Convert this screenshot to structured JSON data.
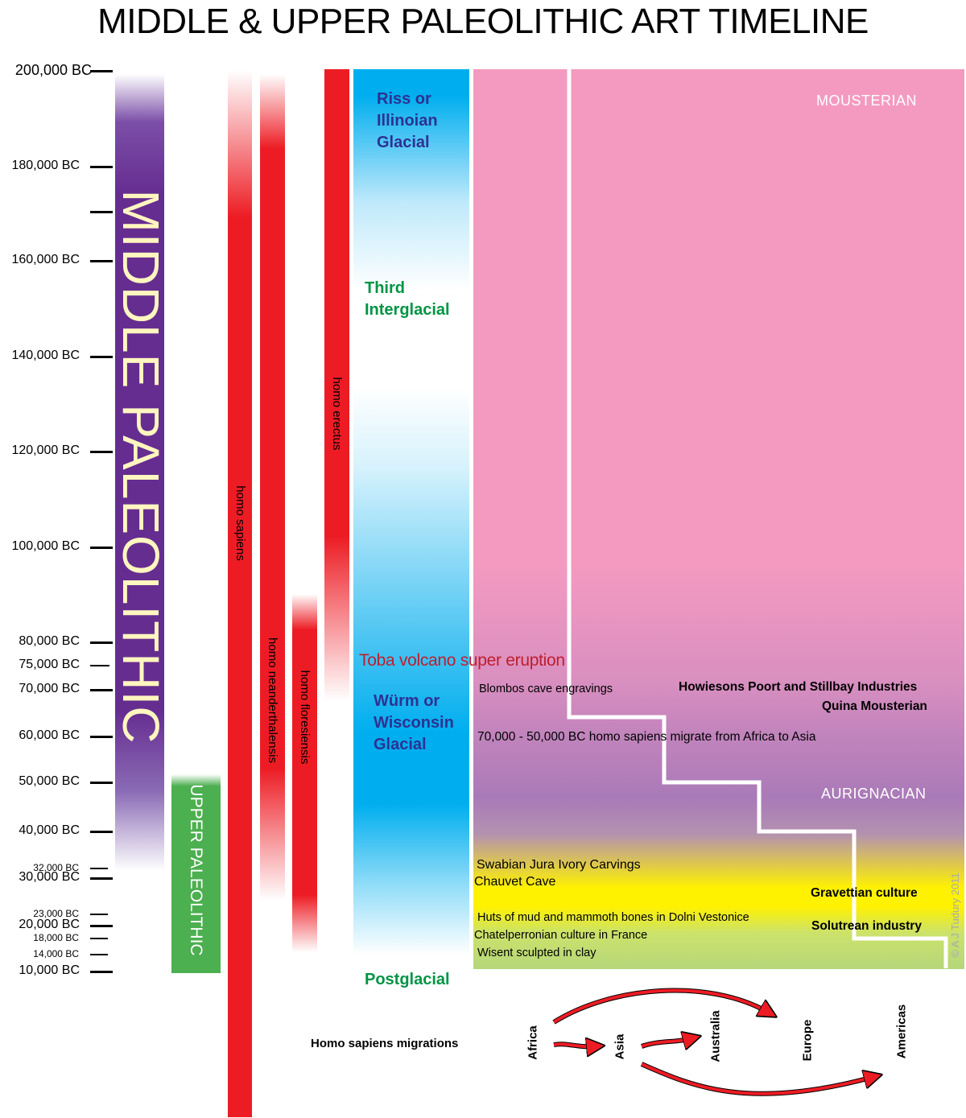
{
  "title": "MIDDLE & UPPER PALEOLITHIC ART TIMELINE",
  "axis": {
    "ticks": [
      {
        "label": "200,000 BC",
        "size": "large"
      },
      {
        "label": "180,000 BC",
        "size": "large"
      },
      {
        "label": "",
        "size": "large"
      },
      {
        "label": "160,000 BC",
        "size": "large"
      },
      {
        "label": "140,000 BC",
        "size": "large"
      },
      {
        "label": "120,000 BC",
        "size": "large"
      },
      {
        "label": "100,000 BC",
        "size": "large"
      },
      {
        "label": "80,000 BC",
        "size": "large"
      },
      {
        "label": "75,000 BC",
        "size": "medium"
      },
      {
        "label": "70,000 BC",
        "size": "large"
      },
      {
        "label": "60,000 BC",
        "size": "large"
      },
      {
        "label": "50,000 BC",
        "size": "large"
      },
      {
        "label": "40,000 BC",
        "size": "large"
      },
      {
        "label": "32,000 BC",
        "size": "small"
      },
      {
        "label": "30,000 BC",
        "size": "large"
      },
      {
        "label": "23,000 BC",
        "size": "small"
      },
      {
        "label": "20,000 BC",
        "size": "large"
      },
      {
        "label": "18,000 BC",
        "size": "small"
      },
      {
        "label": "14,000 BC",
        "size": "small"
      },
      {
        "label": "10,000 BC",
        "size": "large"
      }
    ]
  },
  "periods": {
    "middle": "MIDDLE PALEOLITHIC",
    "upper": "UPPER PALEOLITHIC"
  },
  "species": {
    "sapiens": "homo  sapiens",
    "neanderthalensis": "homo neanderthalensis",
    "floresiensis": "homo floresiensis",
    "erectus": "homo  erectus"
  },
  "climate": {
    "riss": [
      "Riss or",
      "Illinoian",
      "Glacial"
    ],
    "third": [
      "Third",
      "Interglacial"
    ],
    "wurm": [
      "Würm or",
      "Wisconsin",
      "Glacial"
    ],
    "postglacial": "Postglacial"
  },
  "toba": "Toba volcano super eruption",
  "cultures": {
    "mousterian": "MOUSTERIAN",
    "aurignacian": "AURIGNACIAN"
  },
  "events": {
    "blombos": "Blombos cave engravings",
    "migrate": "70,000 - 50,000 BC homo sapiens migrate from Africa to Asia",
    "swabian": "Swabian Jura Ivory Carvings",
    "chauvet": "Chauvet Cave",
    "huts": "Huts of mud and mammoth bones in Dolni Vestonice",
    "chatelperronian": "Chatelperronian culture in France",
    "wisent": "Wisent sculpted in clay"
  },
  "industries": {
    "howiesons": "Howiesons Poort and Stillbay Industries",
    "quina": "Quina Mousterian",
    "gravettian": "Gravettian culture",
    "solutrean": "Solutrean industry"
  },
  "copyright": "© A J Tudury 2011",
  "migrations": {
    "label": "Homo sapiens migrations",
    "africa": "Africa",
    "asia": "Asia",
    "australia": "Australia",
    "europe": "Europe",
    "americas": "Americas"
  },
  "colors": {
    "purple": "#662d91",
    "green": "#4caf50",
    "red": "#ed1c24",
    "blue": "#00aeef",
    "pink": "#f49ac1",
    "yellow": "#fff200",
    "lime": "#b5d67a",
    "toba": "#be1e2d"
  }
}
